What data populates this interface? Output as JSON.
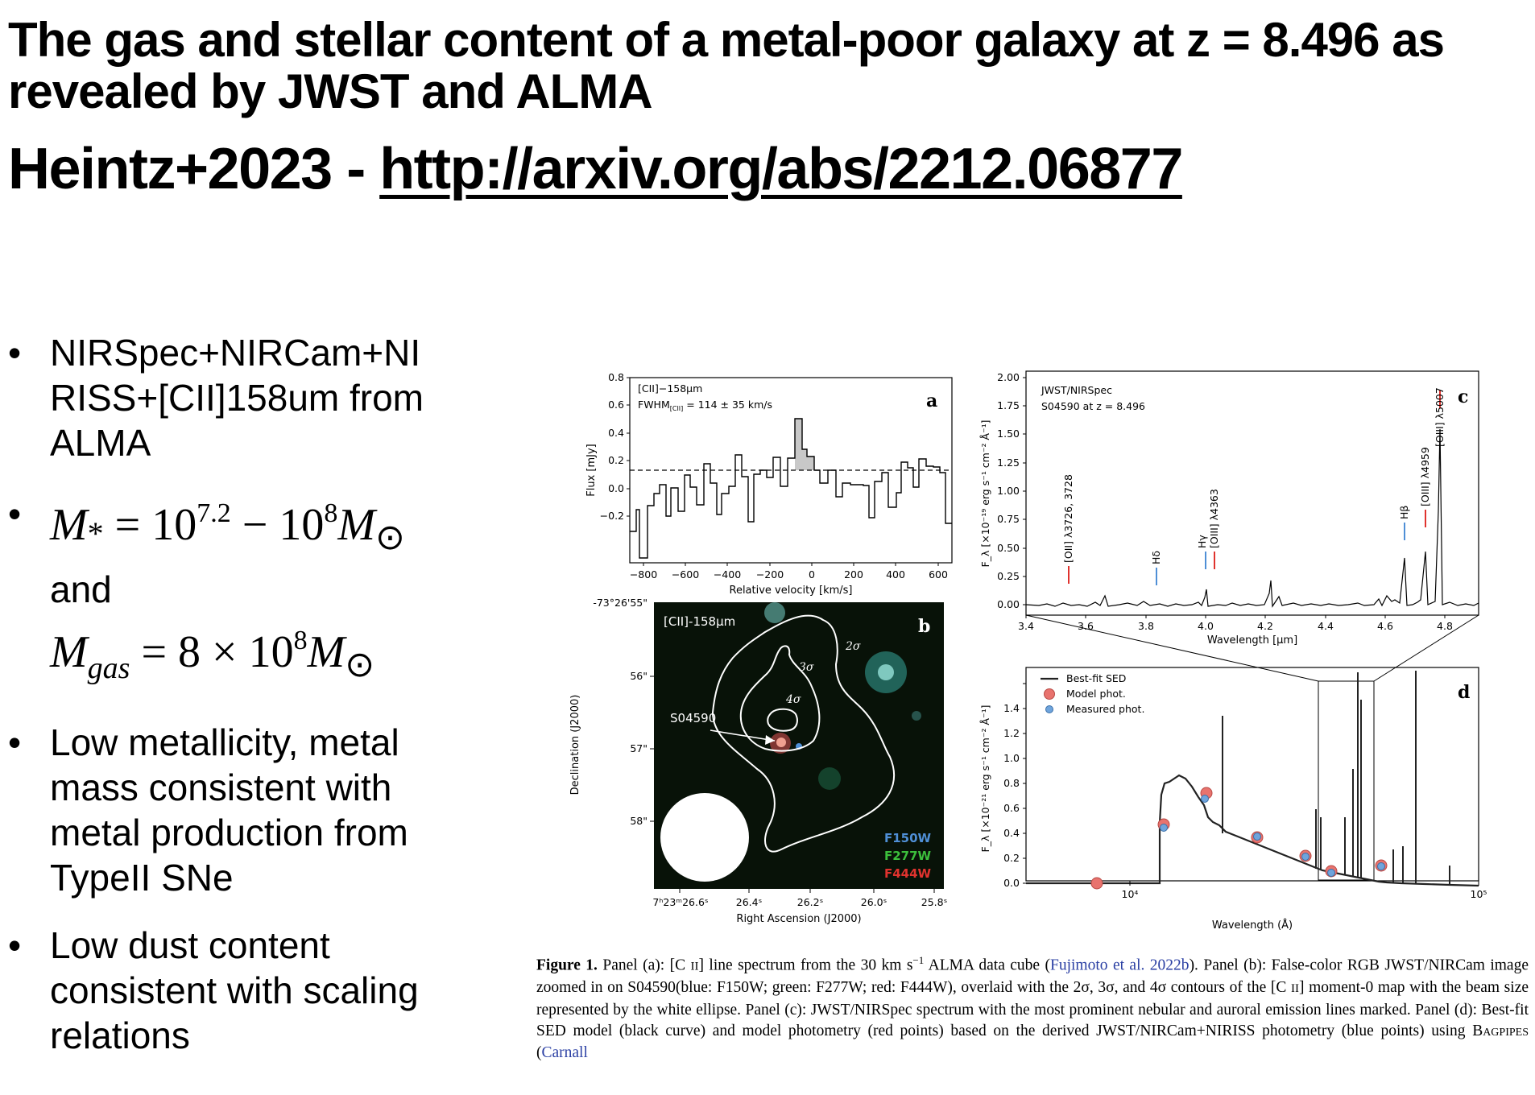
{
  "slide": {
    "title": "The gas and stellar content of a metal-poor galaxy at z = 8.496 as revealed by JWST and ALMA",
    "citation_author": "Heintz+2023 - ",
    "citation_link": "http://arxiv.org/abs/2212.06877"
  },
  "bullets": {
    "b1": "NIRSpec+NIRCam+NIRISS+[CII]158um from ALMA",
    "b1_lines": [
      "NIRSpec+NIRCam+NI",
      "RISS+[CII]158um from",
      "ALMA"
    ],
    "b2_mstar_lhs": "M",
    "b2_mstar_sub": "*",
    "b2_mstar_mid": " = 10",
    "b2_exp1": "7.2",
    "b2_dash": " − 10",
    "b2_exp2": "8",
    "b2_sun": "M",
    "b2_and": "and",
    "b2_mgas_lhs": "M",
    "b2_mgas_sub": "gas",
    "b2_mgas_mid": " = 8 × 10",
    "b2_exp3": "8",
    "b3_lines": [
      "Low metallicity, metal",
      "mass consistent with",
      "metal production from",
      "TypeII SNe"
    ],
    "b4_lines": [
      "Low dust content",
      "consistent with scaling",
      "relations"
    ]
  },
  "figure": {
    "panel_a": {
      "label": "a",
      "annotation_1": "[CII]−158μm",
      "annotation_2": "FWHM",
      "annotation_2_sub": "[CII]",
      "annotation_2_rest": " = 114 ± 35 km/s",
      "ylabel": "Flux [mJy]",
      "xlabel": "Relative velocity [km/s]",
      "xticks": [
        "−800",
        "−600",
        "−400",
        "−200",
        "0",
        "200",
        "400",
        "600"
      ],
      "yticks": [
        "−0.2",
        "0.0",
        "0.2",
        "0.4",
        "0.6",
        "0.8"
      ]
    },
    "panel_b": {
      "label": "b",
      "title": "[CII]-158μm",
      "source": "S04590",
      "contours": [
        "2σ",
        "3σ",
        "4σ"
      ],
      "filters": [
        {
          "name": "F150W",
          "color": "#4f8fd6"
        },
        {
          "name": "F277W",
          "color": "#3cbf3c"
        },
        {
          "name": "F444W",
          "color": "#e0332e"
        }
      ],
      "dec_ticks": [
        "-73°26'55\"",
        "56\"",
        "57\"",
        "58\""
      ],
      "ra_ticks": [
        "7ʰ23ᵐ26.6ˢ",
        "26.4ˢ",
        "26.2ˢ",
        "26.0ˢ",
        "25.8ˢ"
      ],
      "xlabel": "Right Ascension (J2000)",
      "ylabel": "Declination (J2000)"
    },
    "panel_c": {
      "label": "c",
      "annotation_1": "JWST/NIRSpec",
      "annotation_2": "S04590 at z = 8.496",
      "ylabel": "F_λ [×10⁻¹⁹ erg s⁻¹ cm⁻² Å⁻¹]",
      "xlabel": "Wavelength [μm]",
      "xticks": [
        "3.4",
        "3.6",
        "3.8",
        "4.0",
        "4.2",
        "4.4",
        "4.6",
        "4.8"
      ],
      "yticks": [
        "0.00",
        "0.25",
        "0.50",
        "0.75",
        "1.00",
        "1.25",
        "1.50",
        "1.75",
        "2.00"
      ],
      "lines": [
        "[OII] λ3726, 3728",
        "Hδ",
        "Hγ",
        "[OIII] λ4363",
        "Hβ",
        "[OIII] λ4959",
        "[OIII] λ5007"
      ]
    },
    "panel_d": {
      "label": "d",
      "legend": [
        "Best-fit SED",
        "Model phot.",
        "Measured phot."
      ],
      "ylabel": "F_λ [×10⁻²¹ erg s⁻¹ cm⁻² Å⁻¹]",
      "xlabel": "Wavelength (Å)",
      "xticks": [
        "10⁴",
        "10⁵"
      ],
      "yticks": [
        "0.0",
        "0.2",
        "0.4",
        "0.6",
        "0.8",
        "1.0",
        "1.2",
        "1.4"
      ],
      "model_color": "#e8736e",
      "measured_color": "#6fa4dc"
    }
  },
  "caption": {
    "label": "Figure 1.",
    "t1": " Panel (a): [C ",
    "t1_ii": "II",
    "t2": "] line spectrum from the 30 km s",
    "t2_sup": "−1",
    "t3": " ALMA data cube (",
    "cit1": "Fujimoto et al. 2022b",
    "t4": "). Panel (b): False-color RGB JWST/NIRCam image zoomed in on S04590(blue: F150W; green: F277W; red: F444W), overlaid with the 2σ, 3σ, and 4σ contours of the [C ",
    "t4_ii": "II",
    "t5": "] moment-0 map with the beam size represented by the white ellipse. Panel (c): JWST/NIRSpec spectrum with the most prominent nebular and auroral emission lines marked. Panel (d): Best-fit SED model (black curve) and model photometry (red points) based on the derived JWST/NIRCam+NIRISS photometry (blue points) using ",
    "t5_sc": "Bagpipes",
    "t6": " (",
    "cit2": "Carnall"
  }
}
